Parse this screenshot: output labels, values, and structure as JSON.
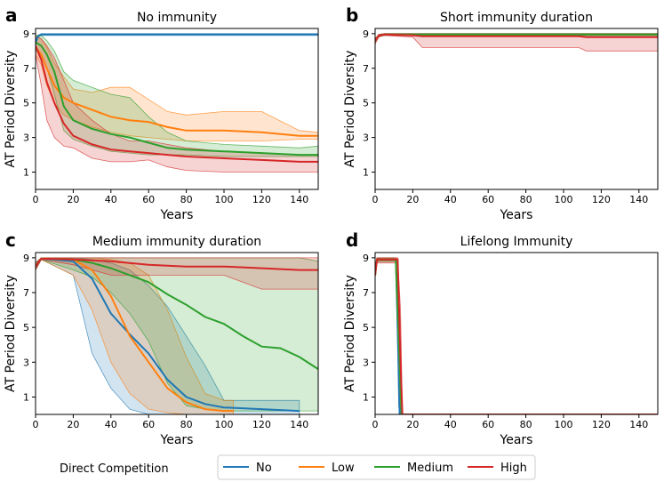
{
  "figure": {
    "legend_title": "Direct Competition",
    "series": [
      {
        "name": "No",
        "color": "#1f77b4"
      },
      {
        "name": "Low",
        "color": "#ff7f0e"
      },
      {
        "name": "Medium",
        "color": "#2ca02c"
      },
      {
        "name": "High",
        "color": "#d62728"
      }
    ]
  },
  "chart_data": [
    {
      "panel": "a",
      "type": "line",
      "title": "No immunity",
      "xlabel": "Years",
      "ylabel": "AT Period Diversity",
      "xlim": [
        0,
        150
      ],
      "ylim": [
        0,
        9.3
      ],
      "xticks": [
        0,
        20,
        40,
        60,
        80,
        100,
        120,
        140
      ],
      "yticks": [
        1,
        3,
        5,
        7,
        9
      ],
      "series": [
        {
          "name": "No",
          "x": [
            0,
            1,
            3,
            150
          ],
          "y": [
            8.4,
            8.8,
            8.95,
            8.95
          ],
          "lower": [
            8.3,
            8.8,
            8.9,
            8.9
          ],
          "upper": [
            8.5,
            8.9,
            9.0,
            9.0
          ]
        },
        {
          "name": "Low",
          "x": [
            0,
            3,
            6,
            10,
            15,
            20,
            30,
            40,
            50,
            60,
            70,
            80,
            100,
            120,
            140,
            150
          ],
          "y": [
            8.2,
            7.8,
            7.0,
            6.0,
            5.3,
            5.0,
            4.6,
            4.2,
            4.0,
            3.9,
            3.6,
            3.4,
            3.4,
            3.3,
            3.1,
            3.1
          ],
          "lower": [
            7.8,
            7.2,
            6.0,
            5.0,
            4.3,
            4.0,
            3.6,
            3.3,
            3.1,
            3.0,
            2.9,
            2.8,
            2.8,
            2.8,
            2.9,
            2.9
          ],
          "upper": [
            8.9,
            8.7,
            8.2,
            7.3,
            6.5,
            5.8,
            5.6,
            5.9,
            5.9,
            5.2,
            4.5,
            4.3,
            4.5,
            4.5,
            3.4,
            3.3
          ]
        },
        {
          "name": "Medium",
          "x": [
            0,
            3,
            6,
            10,
            15,
            20,
            30,
            40,
            50,
            60,
            70,
            80,
            100,
            120,
            140,
            150
          ],
          "y": [
            8.5,
            8.3,
            7.8,
            6.8,
            4.8,
            4.0,
            3.5,
            3.2,
            3.0,
            2.7,
            2.4,
            2.3,
            2.2,
            2.1,
            2.0,
            2.0
          ],
          "lower": [
            8.0,
            7.8,
            7.0,
            5.5,
            3.4,
            2.9,
            2.5,
            2.2,
            2.1,
            2.0,
            2.0,
            2.0,
            1.9,
            1.9,
            1.9,
            1.9
          ],
          "upper": [
            8.9,
            8.9,
            8.6,
            8.0,
            6.8,
            6.3,
            5.9,
            5.5,
            5.3,
            4.2,
            3.3,
            2.8,
            2.6,
            2.5,
            2.4,
            2.5
          ]
        },
        {
          "name": "High",
          "x": [
            0,
            3,
            6,
            10,
            15,
            20,
            30,
            40,
            50,
            60,
            70,
            80,
            100,
            120,
            140,
            150
          ],
          "y": [
            8.3,
            7.5,
            6.2,
            5.0,
            3.8,
            3.1,
            2.6,
            2.3,
            2.2,
            2.1,
            2.0,
            1.9,
            1.8,
            1.7,
            1.6,
            1.6
          ],
          "lower": [
            7.8,
            6.0,
            4.0,
            3.0,
            2.5,
            2.4,
            1.8,
            1.6,
            1.6,
            1.7,
            1.3,
            1.1,
            1.0,
            1.0,
            1.0,
            1.0
          ],
          "upper": [
            8.8,
            8.7,
            8.3,
            7.6,
            6.3,
            5.0,
            4.0,
            3.2,
            2.8,
            2.8,
            2.6,
            2.4,
            2.2,
            2.1,
            2.0,
            2.0
          ]
        }
      ]
    },
    {
      "panel": "b",
      "type": "line",
      "title": "Short immunity duration",
      "xlabel": "Years",
      "ylabel": "AT Period Diversity",
      "xlim": [
        0,
        150
      ],
      "ylim": [
        0,
        9.3
      ],
      "xticks": [
        0,
        20,
        40,
        60,
        80,
        100,
        120,
        140
      ],
      "yticks": [
        1,
        3,
        5,
        7,
        9
      ],
      "series": [
        {
          "name": "No",
          "x": [
            0,
            2,
            5,
            150
          ],
          "y": [
            8.6,
            8.9,
            8.95,
            8.95
          ],
          "lower": [
            8.5,
            8.85,
            8.9,
            8.9
          ],
          "upper": [
            8.7,
            8.95,
            9.0,
            9.0
          ]
        },
        {
          "name": "Low",
          "x": [
            0,
            2,
            5,
            150
          ],
          "y": [
            8.6,
            8.9,
            8.95,
            8.95
          ],
          "lower": [
            8.5,
            8.85,
            8.9,
            8.9
          ],
          "upper": [
            8.7,
            8.95,
            9.0,
            9.0
          ]
        },
        {
          "name": "Medium",
          "x": [
            0,
            2,
            5,
            150
          ],
          "y": [
            8.6,
            8.9,
            8.95,
            8.95
          ],
          "lower": [
            8.5,
            8.85,
            8.9,
            8.9
          ],
          "upper": [
            8.7,
            8.95,
            9.0,
            9.0
          ]
        },
        {
          "name": "High",
          "x": [
            0,
            2,
            5,
            20,
            25,
            108,
            112,
            150
          ],
          "y": [
            8.6,
            8.9,
            8.95,
            8.9,
            8.85,
            8.85,
            8.8,
            8.8
          ],
          "lower": [
            8.4,
            8.8,
            8.9,
            8.8,
            8.2,
            8.2,
            8.0,
            8.0
          ],
          "upper": [
            8.7,
            8.95,
            9.0,
            9.0,
            9.0,
            9.0,
            9.0,
            9.0
          ]
        }
      ]
    },
    {
      "panel": "c",
      "type": "line",
      "title": "Medium immunity duration",
      "xlabel": "Years",
      "ylabel": "AT Period Diversity",
      "xlim": [
        0,
        150
      ],
      "ylim": [
        0,
        9.3
      ],
      "xticks": [
        0,
        20,
        40,
        60,
        80,
        100,
        120,
        140
      ],
      "yticks": [
        1,
        3,
        5,
        7,
        9
      ],
      "series": [
        {
          "name": "No",
          "x": [
            0,
            3,
            20,
            30,
            40,
            50,
            60,
            70,
            80,
            90,
            100,
            120,
            140
          ],
          "y": [
            8.5,
            8.95,
            8.8,
            7.8,
            5.8,
            4.6,
            3.5,
            2.0,
            1.0,
            0.6,
            0.4,
            0.3,
            0.2
          ],
          "lower": [
            8.3,
            8.9,
            8.0,
            3.5,
            1.5,
            0.3,
            0.0,
            0.0,
            0.0,
            0.0,
            0.0,
            0.0,
            0.0
          ],
          "upper": [
            8.7,
            9.0,
            9.0,
            8.9,
            8.7,
            8.3,
            7.4,
            6.2,
            4.5,
            2.8,
            0.8,
            0.8,
            0.8
          ]
        },
        {
          "name": "Low",
          "x": [
            0,
            3,
            20,
            30,
            40,
            50,
            60,
            70,
            80,
            90,
            100,
            105
          ],
          "y": [
            8.5,
            8.95,
            8.9,
            8.3,
            6.8,
            4.5,
            3.0,
            1.5,
            0.7,
            0.3,
            0.2,
            0.2
          ],
          "lower": [
            8.3,
            8.9,
            8.0,
            6.0,
            3.0,
            1.2,
            0.3,
            0.1,
            0.0,
            0.0,
            0.0,
            0.0
          ],
          "upper": [
            8.7,
            9.0,
            9.0,
            9.0,
            8.9,
            8.7,
            8.0,
            6.0,
            3.3,
            1.2,
            0.8,
            0.8
          ]
        },
        {
          "name": "Medium",
          "x": [
            0,
            3,
            20,
            30,
            40,
            50,
            60,
            70,
            80,
            90,
            100,
            110,
            120,
            130,
            140,
            150
          ],
          "y": [
            8.5,
            8.95,
            8.9,
            8.7,
            8.4,
            8.0,
            7.6,
            6.9,
            6.3,
            5.6,
            5.2,
            4.5,
            3.9,
            3.8,
            3.3,
            2.6
          ],
          "lower": [
            8.3,
            8.9,
            8.3,
            7.9,
            7.0,
            5.8,
            4.2,
            1.8,
            0.5,
            0.3,
            0.2,
            0.2,
            0.2,
            0.2,
            0.2,
            0.2
          ],
          "upper": [
            8.7,
            9.0,
            9.0,
            9.0,
            9.0,
            9.0,
            9.0,
            9.0,
            9.0,
            9.0,
            9.0,
            9.0,
            9.0,
            9.0,
            9.0,
            8.8
          ]
        },
        {
          "name": "High",
          "x": [
            0,
            3,
            20,
            40,
            60,
            80,
            100,
            120,
            140,
            150
          ],
          "y": [
            8.5,
            8.95,
            8.9,
            8.8,
            8.6,
            8.5,
            8.5,
            8.4,
            8.3,
            8.3
          ],
          "lower": [
            8.3,
            8.9,
            8.6,
            8.0,
            8.0,
            8.0,
            8.0,
            7.2,
            7.2,
            7.2
          ],
          "upper": [
            8.7,
            9.0,
            9.0,
            9.0,
            9.0,
            9.0,
            9.0,
            9.0,
            9.0,
            9.0
          ]
        }
      ]
    },
    {
      "panel": "d",
      "type": "line",
      "title": "Lifelong Immunity",
      "xlabel": "Years",
      "ylabel": "AT Period Diversity",
      "xlim": [
        0,
        150
      ],
      "ylim": [
        0,
        9.3
      ],
      "xticks": [
        0,
        20,
        40,
        60,
        80,
        100,
        120,
        140
      ],
      "yticks": [
        1,
        3,
        5,
        7,
        9
      ],
      "series": [
        {
          "name": "No",
          "x": [
            0,
            1,
            11,
            12.5,
            13,
            150
          ],
          "y": [
            8.0,
            8.9,
            8.9,
            3.0,
            0.0,
            0.0
          ],
          "lower": [
            7.9,
            8.8,
            8.8,
            0.5,
            0.0,
            0.0
          ],
          "upper": [
            8.1,
            9.0,
            9.0,
            6.0,
            0.0,
            0.0
          ]
        },
        {
          "name": "Low",
          "x": [
            0,
            1,
            11,
            13,
            14,
            150
          ],
          "y": [
            8.0,
            8.9,
            8.9,
            3.0,
            0.0,
            0.0
          ],
          "lower": [
            7.9,
            8.8,
            8.8,
            0.5,
            0.0,
            0.0
          ],
          "upper": [
            8.1,
            9.0,
            9.0,
            6.0,
            0.0,
            0.0
          ]
        },
        {
          "name": "Medium",
          "x": [
            0,
            1,
            11,
            13,
            14,
            150
          ],
          "y": [
            8.0,
            8.9,
            8.9,
            3.0,
            0.0,
            0.0
          ],
          "lower": [
            7.9,
            8.8,
            8.8,
            0.5,
            0.0,
            0.0
          ],
          "upper": [
            8.1,
            9.0,
            9.0,
            6.0,
            0.0,
            0.0
          ]
        },
        {
          "name": "High",
          "x": [
            0,
            1,
            12,
            13.5,
            14.5,
            150
          ],
          "y": [
            8.0,
            8.9,
            8.9,
            3.0,
            0.0,
            0.0
          ],
          "lower": [
            7.9,
            8.7,
            8.7,
            0.5,
            0.0,
            0.0
          ],
          "upper": [
            8.1,
            9.0,
            9.0,
            6.0,
            0.0,
            0.0
          ]
        }
      ]
    }
  ]
}
